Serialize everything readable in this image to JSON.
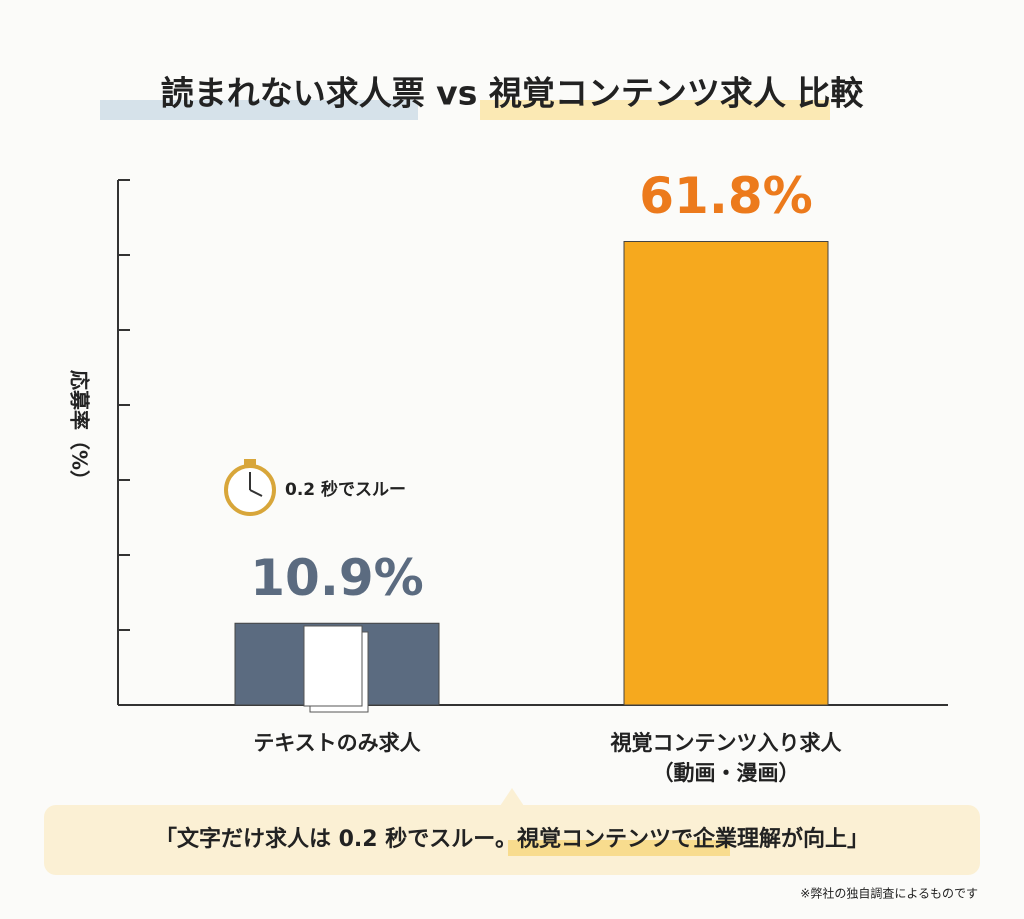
{
  "chart_data": {
    "type": "bar",
    "title": "読まれない求人票 vs 視覚コンテンツ求人 比較",
    "y_label": "応募率（%）",
    "categories": [
      "テキストのみ求人",
      "視覚コンテンツ入り求人\n（動画・漫画）"
    ],
    "values": [
      10.9,
      61.8
    ],
    "value_labels": [
      "10.9%",
      "61.8%"
    ],
    "colors": [
      "#5b6b80",
      "#f6a91e"
    ],
    "value_label_colors": [
      "#5b6b80",
      "#ec7a1c"
    ],
    "ylim": [
      0,
      70
    ],
    "yticks": [
      0,
      10,
      20,
      30,
      40,
      50,
      60,
      70
    ],
    "annotations": [
      "0.2 秒でスルー",
      "「文字だけ求人は 0.2 秒でスルー。視覚コンテンツで企業理解が向上」",
      "※弊社の独自調査によるものです"
    ]
  }
}
